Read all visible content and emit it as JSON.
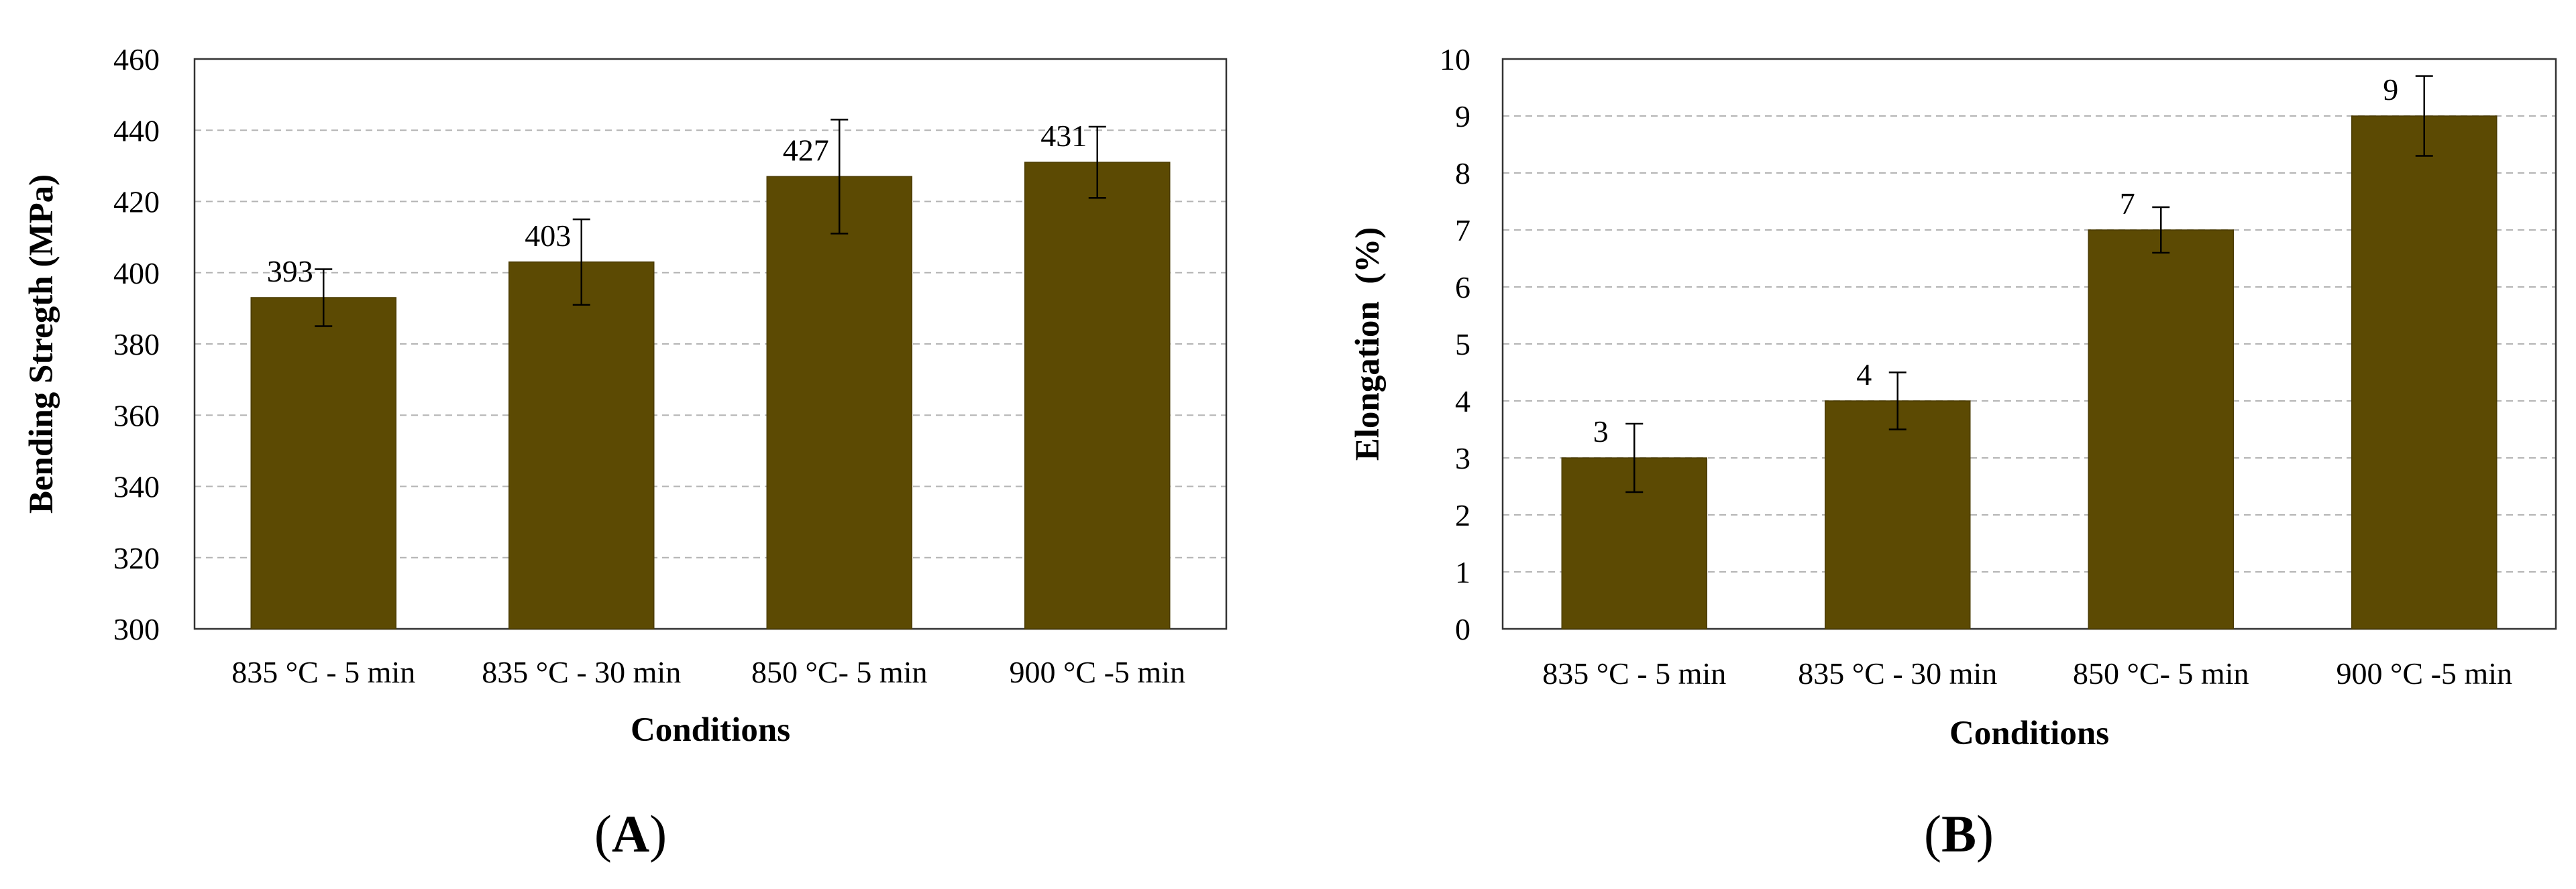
{
  "colors": {
    "bar": "#5c4a03",
    "bar_outline": "#4a3b02",
    "grid": "#b4b4b4",
    "axis": "#333333",
    "error_bar": "#000000"
  },
  "chart_data": [
    {
      "type": "bar",
      "panel": "A",
      "categories": [
        "835 °C - 5 min",
        "835 °C - 30 min",
        "850 °C- 5 min",
        "900 °C -5 min"
      ],
      "values": [
        393,
        403,
        427,
        431
      ],
      "error": [
        8,
        12,
        16,
        10
      ],
      "data_labels": [
        "393",
        "403",
        "427",
        "431"
      ],
      "xlabel": "Conditions",
      "ylabel": "Bending Stregth (MPa)",
      "ylim": [
        300,
        460
      ],
      "yticks": [
        300,
        320,
        340,
        360,
        380,
        400,
        420,
        440,
        460
      ],
      "ytick_labels": [
        "300",
        "320",
        "340",
        "360",
        "380",
        "400",
        "420",
        "440",
        "460"
      ],
      "grid": "horizontal dashed",
      "legend": "none"
    },
    {
      "type": "bar",
      "panel": "B",
      "categories": [
        "835 °C - 5 min",
        "835 °C - 30 min",
        "850 °C- 5 min",
        "900 °C -5 min"
      ],
      "values": [
        3,
        4,
        7,
        9
      ],
      "error": [
        0.6,
        0.5,
        0.4,
        0.7
      ],
      "data_labels": [
        "3",
        "4",
        "7",
        "9"
      ],
      "xlabel": "Conditions",
      "ylabel": "Elongation  (%)",
      "ylim": [
        0,
        10
      ],
      "yticks": [
        0,
        1,
        2,
        3,
        4,
        5,
        6,
        7,
        8,
        9,
        10
      ],
      "ytick_labels": [
        "0",
        "1",
        "2",
        "3",
        "4",
        "5",
        "6",
        "7",
        "8",
        "9",
        "10"
      ],
      "grid": "horizontal dashed",
      "legend": "none"
    }
  ]
}
